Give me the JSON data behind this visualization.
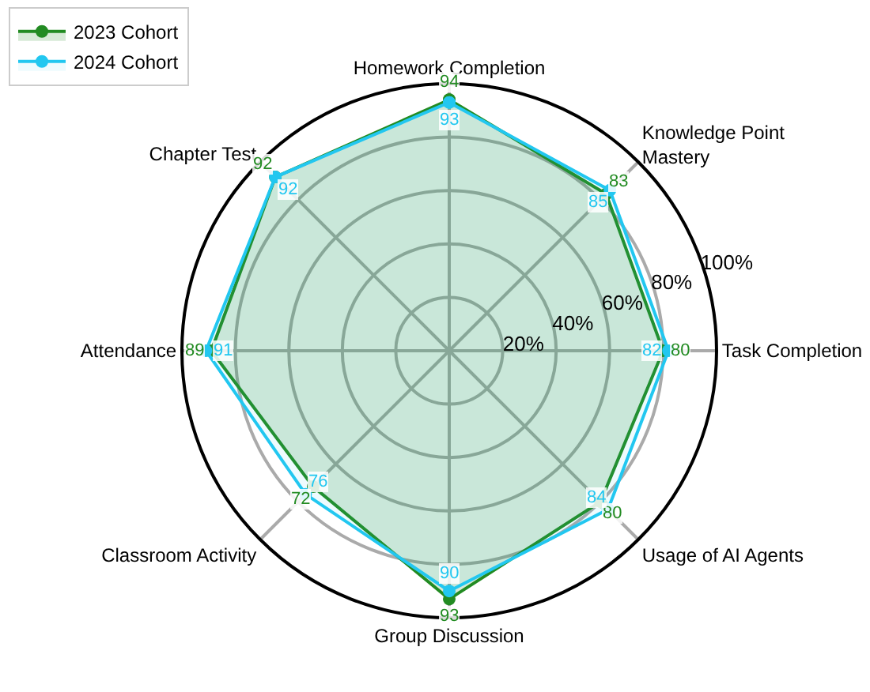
{
  "chart_data": {
    "type": "radar",
    "categories": [
      "Homework Completion",
      "Knowledge Point Mastery",
      "Task Completion",
      "Usage of AI Agents",
      "Group Discussion",
      "Classroom Activity",
      "Attendance",
      "Chapter Test"
    ],
    "series": [
      {
        "name": "2023 Cohort",
        "color": "#228b22",
        "values": [
          94,
          83,
          80,
          80,
          93,
          72,
          89,
          92
        ]
      },
      {
        "name": "2024 Cohort",
        "color": "#22c7f0",
        "values": [
          93,
          85,
          82,
          84,
          90,
          76,
          91,
          92
        ]
      }
    ],
    "ylim": [
      0,
      100
    ],
    "yticks": [
      {
        "value": 20,
        "label": "20%"
      },
      {
        "value": 40,
        "label": "40%"
      },
      {
        "value": 60,
        "label": "60%"
      },
      {
        "value": 80,
        "label": "80%"
      },
      {
        "value": 100,
        "label": "100%"
      }
    ],
    "grid": true,
    "legend": "top left",
    "marker": "circle",
    "line_style": "solid",
    "data_labels": true
  }
}
